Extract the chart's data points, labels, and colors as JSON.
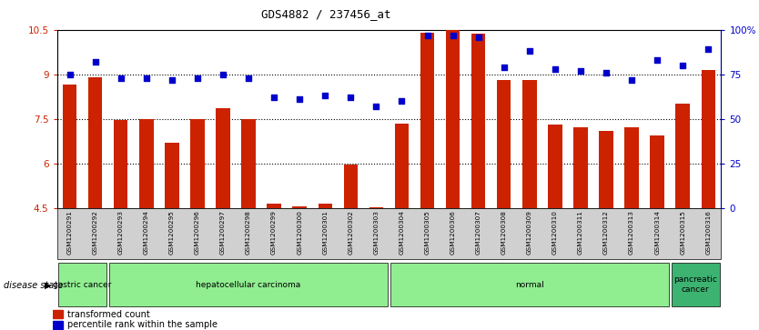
{
  "title": "GDS4882 / 237456_at",
  "samples": [
    "GSM1200291",
    "GSM1200292",
    "GSM1200293",
    "GSM1200294",
    "GSM1200295",
    "GSM1200296",
    "GSM1200297",
    "GSM1200298",
    "GSM1200299",
    "GSM1200300",
    "GSM1200301",
    "GSM1200302",
    "GSM1200303",
    "GSM1200304",
    "GSM1200305",
    "GSM1200306",
    "GSM1200307",
    "GSM1200308",
    "GSM1200309",
    "GSM1200310",
    "GSM1200311",
    "GSM1200312",
    "GSM1200313",
    "GSM1200314",
    "GSM1200315",
    "GSM1200316"
  ],
  "transformed_count": [
    8.65,
    8.9,
    7.45,
    7.5,
    6.7,
    7.5,
    7.85,
    7.5,
    4.65,
    4.55,
    4.65,
    5.95,
    4.52,
    7.35,
    10.4,
    10.48,
    10.38,
    8.8,
    8.8,
    7.3,
    7.2,
    7.1,
    7.2,
    6.95,
    8.0,
    9.15
  ],
  "percentile_rank": [
    75,
    82,
    73,
    73,
    72,
    73,
    75,
    73,
    62,
    61,
    63,
    62,
    57,
    60,
    97,
    97,
    96,
    79,
    88,
    78,
    77,
    76,
    72,
    83,
    80,
    89
  ],
  "ylim_left": [
    4.5,
    10.5
  ],
  "ylim_right": [
    0,
    100
  ],
  "yticks_left": [
    4.5,
    6.0,
    7.5,
    9.0,
    10.5
  ],
  "yticks_right": [
    0,
    25,
    50,
    75,
    100
  ],
  "bar_color": "#CC2200",
  "dot_color": "#0000CC",
  "dotted_lines": [
    6.0,
    7.5,
    9.0
  ],
  "disease_groups": [
    {
      "label": "gastric cancer",
      "start": 0,
      "end": 2,
      "color": "#90EE90"
    },
    {
      "label": "hepatocellular carcinoma",
      "start": 2,
      "end": 13,
      "color": "#90EE90"
    },
    {
      "label": "normal",
      "start": 13,
      "end": 24,
      "color": "#90EE90"
    },
    {
      "label": "pancreatic\ncancer",
      "start": 24,
      "end": 26,
      "color": "#3CB371"
    }
  ]
}
